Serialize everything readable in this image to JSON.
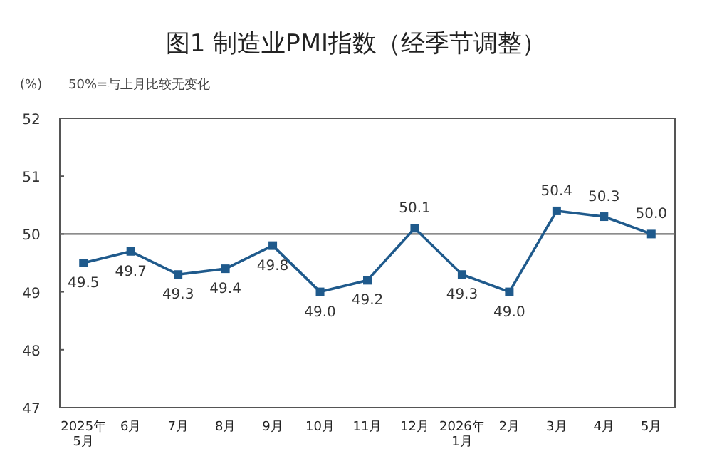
{
  "chart_data": {
    "type": "line",
    "title": "图1  制造业PMI指数（经季节调整）",
    "subtitle": "50%=与上月比较无变化",
    "ylabel": "(%)",
    "categories": [
      "2025年\n5月",
      "6月",
      "7月",
      "8月",
      "9月",
      "10月",
      "11月",
      "12月",
      "2026年\n1月",
      "2月",
      "3月",
      "4月",
      "5月"
    ],
    "series": [
      {
        "color": "#1f5a8c",
        "values": [
          49.5,
          49.7,
          49.3,
          49.4,
          49.8,
          49.0,
          49.2,
          50.1,
          49.3,
          49.0,
          50.4,
          50.3,
          50.0
        ],
        "value_labels": [
          "49.5",
          "49.7",
          "49.3",
          "49.4",
          "49.8",
          "49.0",
          "49.2",
          "50.1",
          "49.3",
          "49.0",
          "50.4",
          "50.3",
          "50.0"
        ]
      }
    ],
    "ylim": [
      47,
      52
    ],
    "yticks": [
      47,
      48,
      49,
      50,
      51,
      52
    ],
    "grid": false,
    "marker": "square",
    "line_style": "solid",
    "ref_lines": [
      {
        "axis": "y",
        "value": 50,
        "color": "#666666"
      }
    ]
  }
}
